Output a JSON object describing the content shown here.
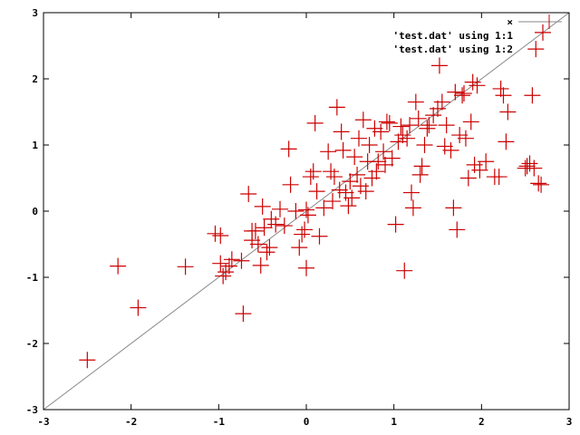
{
  "chart_data": {
    "type": "scatter",
    "title": "",
    "xlabel": "",
    "ylabel": "",
    "xlim": [
      -3,
      3
    ],
    "ylim": [
      -3,
      3
    ],
    "xticks": [
      -3,
      -2,
      -1,
      0,
      1,
      2,
      3
    ],
    "yticks": [
      -3,
      -2,
      -1,
      0,
      1,
      2,
      3
    ],
    "xtick_labels": [
      "-3",
      "-2",
      "-1",
      "0",
      "1",
      "2",
      "3"
    ],
    "ytick_labels": [
      "-3",
      "-2",
      "-1",
      "0",
      "1",
      "2",
      "3"
    ],
    "grid": false,
    "legend_position": "top-right",
    "legend_entries": [
      "×",
      "'test.dat' using 1:1",
      "'test.dat' using 1:2"
    ],
    "series": [
      {
        "name": "'test.dat' using 1:1",
        "style": "line",
        "color": "#888888",
        "x": [
          -3,
          3
        ],
        "y": [
          -3,
          3
        ]
      },
      {
        "name": "'test.dat' using 1:2",
        "style": "points",
        "marker": "plus",
        "color": "#cc0000",
        "points": [
          [
            -2.5,
            -2.25
          ],
          [
            -2.15,
            -0.83
          ],
          [
            -1.92,
            -1.46
          ],
          [
            -1.38,
            -0.84
          ],
          [
            -1.04,
            -0.34
          ],
          [
            -0.98,
            -0.37
          ],
          [
            -0.98,
            -0.79
          ],
          [
            -0.95,
            -0.98
          ],
          [
            -0.92,
            -0.92
          ],
          [
            -0.88,
            -0.83
          ],
          [
            -0.85,
            -0.73
          ],
          [
            -0.74,
            -0.75
          ],
          [
            -0.72,
            -1.55
          ],
          [
            -0.66,
            0.26
          ],
          [
            -0.62,
            -0.3
          ],
          [
            -0.62,
            -0.44
          ],
          [
            -0.58,
            -0.3
          ],
          [
            -0.55,
            -0.5
          ],
          [
            -0.52,
            -0.82
          ],
          [
            -0.5,
            0.07
          ],
          [
            -0.48,
            -0.25
          ],
          [
            -0.45,
            -0.62
          ],
          [
            -0.42,
            -0.55
          ],
          [
            -0.4,
            -0.12
          ],
          [
            -0.35,
            -0.2
          ],
          [
            -0.3,
            0.03
          ],
          [
            -0.25,
            -0.22
          ],
          [
            -0.2,
            0.94
          ],
          [
            -0.18,
            0.4
          ],
          [
            -0.12,
            0.0
          ],
          [
            -0.08,
            -0.55
          ],
          [
            -0.05,
            -0.35
          ],
          [
            -0.02,
            -0.28
          ],
          [
            0.0,
            -0.86
          ],
          [
            0.0,
            0.02
          ],
          [
            0.02,
            -0.06
          ],
          [
            0.05,
            0.52
          ],
          [
            0.08,
            0.6
          ],
          [
            0.1,
            1.33
          ],
          [
            0.12,
            0.3
          ],
          [
            0.15,
            -0.38
          ],
          [
            0.2,
            0.05
          ],
          [
            0.25,
            0.9
          ],
          [
            0.28,
            0.6
          ],
          [
            0.3,
            0.15
          ],
          [
            0.32,
            0.52
          ],
          [
            0.35,
            1.57
          ],
          [
            0.38,
            0.32
          ],
          [
            0.4,
            1.2
          ],
          [
            0.42,
            0.92
          ],
          [
            0.45,
            0.28
          ],
          [
            0.48,
            0.08
          ],
          [
            0.5,
            0.45
          ],
          [
            0.52,
            0.2
          ],
          [
            0.55,
            0.82
          ],
          [
            0.58,
            0.55
          ],
          [
            0.6,
            1.1
          ],
          [
            0.62,
            0.38
          ],
          [
            0.65,
            1.38
          ],
          [
            0.68,
            0.3
          ],
          [
            0.7,
            0.75
          ],
          [
            0.72,
            1.0
          ],
          [
            0.75,
            0.5
          ],
          [
            0.78,
            1.25
          ],
          [
            0.8,
            0.6
          ],
          [
            0.82,
            0.75
          ],
          [
            0.85,
            1.2
          ],
          [
            0.88,
            0.9
          ],
          [
            0.9,
            0.7
          ],
          [
            0.92,
            1.35
          ],
          [
            0.95,
            1.33
          ],
          [
            0.98,
            0.8
          ],
          [
            1.02,
            -0.2
          ],
          [
            1.05,
            1.05
          ],
          [
            1.08,
            1.28
          ],
          [
            1.1,
            1.15
          ],
          [
            1.12,
            -0.9
          ],
          [
            1.15,
            1.1
          ],
          [
            1.18,
            1.3
          ],
          [
            1.2,
            0.28
          ],
          [
            1.22,
            0.05
          ],
          [
            1.25,
            1.65
          ],
          [
            1.28,
            1.4
          ],
          [
            1.3,
            0.55
          ],
          [
            1.32,
            0.68
          ],
          [
            1.35,
            1.0
          ],
          [
            1.38,
            1.25
          ],
          [
            1.4,
            1.3
          ],
          [
            1.45,
            1.45
          ],
          [
            1.5,
            1.55
          ],
          [
            1.52,
            2.2
          ],
          [
            1.55,
            1.65
          ],
          [
            1.58,
            0.98
          ],
          [
            1.6,
            1.3
          ],
          [
            1.65,
            0.92
          ],
          [
            1.68,
            0.05
          ],
          [
            1.7,
            1.8
          ],
          [
            1.72,
            -0.28
          ],
          [
            1.75,
            1.15
          ],
          [
            1.78,
            1.75
          ],
          [
            1.8,
            1.78
          ],
          [
            1.82,
            1.1
          ],
          [
            1.85,
            0.5
          ],
          [
            1.88,
            1.35
          ],
          [
            1.9,
            1.95
          ],
          [
            1.92,
            0.7
          ],
          [
            1.95,
            1.9
          ],
          [
            1.98,
            0.62
          ],
          [
            2.05,
            0.75
          ],
          [
            2.15,
            0.52
          ],
          [
            2.2,
            0.52
          ],
          [
            2.22,
            1.85
          ],
          [
            2.25,
            1.75
          ],
          [
            2.28,
            1.05
          ],
          [
            2.3,
            1.5
          ],
          [
            2.5,
            0.65
          ],
          [
            2.52,
            0.68
          ],
          [
            2.55,
            0.72
          ],
          [
            2.58,
            1.75
          ],
          [
            2.6,
            0.65
          ],
          [
            2.62,
            2.45
          ],
          [
            2.65,
            0.42
          ],
          [
            2.68,
            0.4
          ],
          [
            2.7,
            2.7
          ]
        ]
      }
    ]
  }
}
